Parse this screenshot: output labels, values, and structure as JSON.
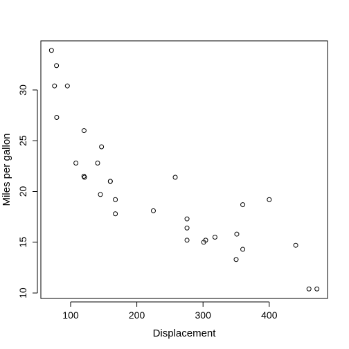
{
  "chart_data": {
    "type": "scatter",
    "title": "",
    "xlabel": "Displacement",
    "ylabel": "Miles per gallon",
    "xlim": [
      71.1,
      472.0
    ],
    "ylim": [
      10.4,
      33.9
    ],
    "xticks": [
      100,
      200,
      300,
      400
    ],
    "yticks": [
      10,
      15,
      20,
      25,
      30
    ],
    "grid": false,
    "legend": "none",
    "point_style": "open-circle",
    "points": [
      {
        "x": 160.0,
        "y": 21.0
      },
      {
        "x": 160.0,
        "y": 21.0
      },
      {
        "x": 108.0,
        "y": 22.8
      },
      {
        "x": 258.0,
        "y": 21.4
      },
      {
        "x": 360.0,
        "y": 18.7
      },
      {
        "x": 225.0,
        "y": 18.1
      },
      {
        "x": 360.0,
        "y": 14.3
      },
      {
        "x": 146.7,
        "y": 24.4
      },
      {
        "x": 140.8,
        "y": 22.8
      },
      {
        "x": 167.6,
        "y": 19.2
      },
      {
        "x": 167.6,
        "y": 17.8
      },
      {
        "x": 275.8,
        "y": 16.4
      },
      {
        "x": 275.8,
        "y": 17.3
      },
      {
        "x": 275.8,
        "y": 15.2
      },
      {
        "x": 472.0,
        "y": 10.4
      },
      {
        "x": 460.0,
        "y": 10.4
      },
      {
        "x": 440.0,
        "y": 14.7
      },
      {
        "x": 78.7,
        "y": 32.4
      },
      {
        "x": 75.7,
        "y": 30.4
      },
      {
        "x": 71.1,
        "y": 33.9
      },
      {
        "x": 120.1,
        "y": 21.5
      },
      {
        "x": 318.0,
        "y": 15.5
      },
      {
        "x": 304.0,
        "y": 15.2
      },
      {
        "x": 350.0,
        "y": 13.3
      },
      {
        "x": 400.0,
        "y": 19.2
      },
      {
        "x": 79.0,
        "y": 27.3
      },
      {
        "x": 120.3,
        "y": 26.0
      },
      {
        "x": 95.1,
        "y": 30.4
      },
      {
        "x": 351.0,
        "y": 15.8
      },
      {
        "x": 145.0,
        "y": 19.7
      },
      {
        "x": 301.0,
        "y": 15.0
      },
      {
        "x": 121.0,
        "y": 21.4
      }
    ]
  }
}
